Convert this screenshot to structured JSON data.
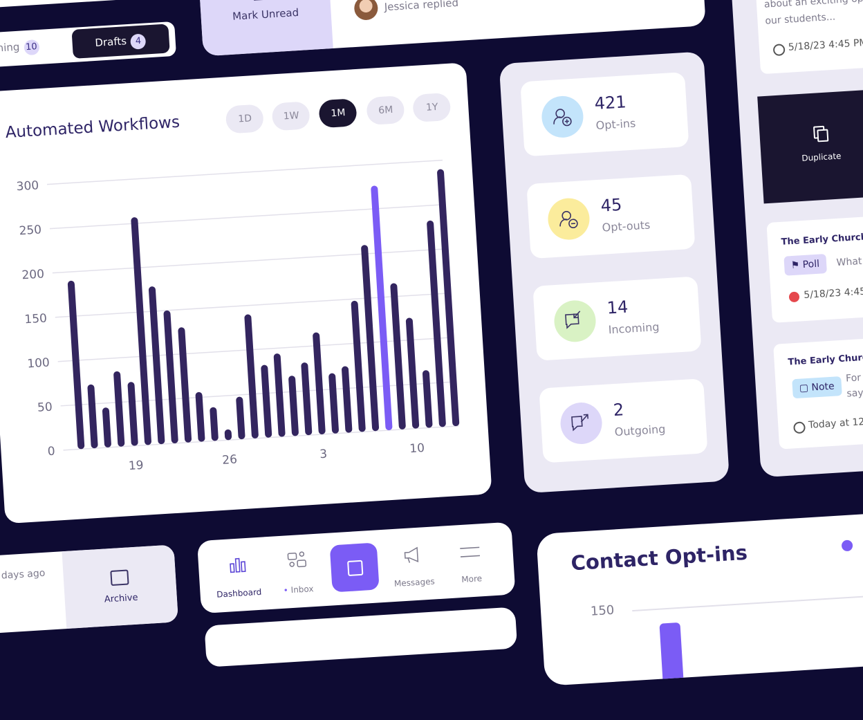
{
  "tabs": {
    "upcoming": {
      "label": "oming",
      "count": 10
    },
    "drafts": {
      "label": "Drafts",
      "count": 4
    }
  },
  "message_actions": {
    "mark_unread": "Mark Unread",
    "activity": "Jessica replied"
  },
  "chart_data": {
    "type": "bar",
    "title": "Automated Workflows",
    "range_options": [
      "1D",
      "1W",
      "1M",
      "6M",
      "1Y"
    ],
    "selected_range": "1M",
    "categories": [
      null,
      null,
      null,
      null,
      "19",
      null,
      null,
      null,
      null,
      null,
      null,
      "26",
      null,
      null,
      null,
      null,
      null,
      null,
      "3",
      null,
      null,
      null,
      null,
      null,
      null,
      "10",
      null,
      null,
      null
    ],
    "values": [
      190,
      72,
      45,
      85,
      72,
      257,
      178,
      150,
      130,
      56,
      38,
      12,
      48,
      140,
      82,
      94,
      68,
      82,
      115,
      68,
      75,
      148,
      210,
      276,
      165,
      125,
      65,
      233,
      290
    ],
    "color": "#33255f",
    "highlight_index": 23,
    "highlight_color": "#7b5cf5",
    "ylim": [
      0,
      300
    ],
    "yticks": [
      0,
      50,
      100,
      150,
      200,
      250,
      300
    ],
    "grid": true
  },
  "stats": [
    {
      "value": 421,
      "label": "Opt-ins",
      "color": "#c3e4fb"
    },
    {
      "value": 45,
      "label": "Opt-outs",
      "color": "#fbec9c"
    },
    {
      "value": 14,
      "label": "Incoming",
      "color": "#d9f2c4"
    },
    {
      "value": 2,
      "label": "Outgoing",
      "color": "#ddd7f9"
    }
  ],
  "feed": {
    "preview": {
      "lines": [
        "about an exciting opp",
        "our students..."
      ],
      "time": "5/18/23 4:45 PM"
    },
    "duplicate": "Duplicate",
    "posts": [
      {
        "title": "The Early Church:",
        "tag": "Poll",
        "snippet": [
          "What"
        ],
        "time": "5/18/23 4:45"
      },
      {
        "title": "The Early Church",
        "tag": "Note",
        "snippet": [
          "For",
          "say"
        ],
        "time": "Today at 12:"
      }
    ]
  },
  "archive": {
    "time": "days ago",
    "action": "Archive"
  },
  "nav": [
    {
      "label": "Dashboard"
    },
    {
      "label": "Inbox"
    },
    {
      "label": "Messages"
    },
    {
      "label": "More"
    }
  ],
  "contact_optins": {
    "title": "Contact Opt-ins",
    "tick": "150"
  }
}
